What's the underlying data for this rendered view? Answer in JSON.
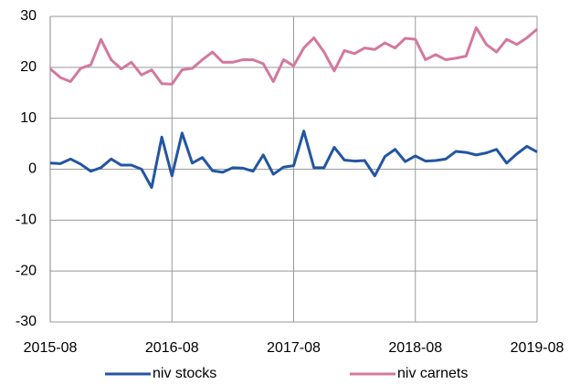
{
  "chart_data": {
    "type": "line",
    "categories": [
      "2015-08",
      null,
      null,
      null,
      null,
      null,
      null,
      null,
      null,
      null,
      null,
      null,
      "2016-08",
      null,
      null,
      null,
      null,
      null,
      null,
      null,
      null,
      null,
      null,
      null,
      "2017-08",
      null,
      null,
      null,
      null,
      null,
      null,
      null,
      null,
      null,
      null,
      null,
      "2018-08",
      null,
      null,
      null,
      null,
      null,
      null,
      null,
      null,
      null,
      null,
      null,
      "2019-08"
    ],
    "series": [
      {
        "name": "niv stocks",
        "color": "#2356a3",
        "values": [
          1.2,
          1.1,
          2,
          1,
          -0.4,
          0.3,
          2,
          0.8,
          0.8,
          0,
          -3.6,
          6.3,
          -1.3,
          7.1,
          1.2,
          2.3,
          -0.3,
          -0.6,
          0.3,
          0.2,
          -0.4,
          2.8,
          -1,
          0.4,
          0.7,
          7.5,
          0.3,
          0.3,
          4.3,
          1.8,
          1.6,
          1.7,
          -1.3,
          2.5,
          3.9,
          1.5,
          2.6,
          1.6,
          1.7,
          2,
          3.5,
          3.3,
          2.8,
          3.2,
          3.9,
          1.2,
          3,
          4.5,
          3.4
        ]
      },
      {
        "name": "niv carnets",
        "color": "#d4789f",
        "values": [
          19.7,
          18,
          17.2,
          19.8,
          20.5,
          25.5,
          21.5,
          19.7,
          21,
          18.5,
          19.5,
          16.8,
          16.7,
          19.5,
          19.8,
          21.5,
          23,
          21,
          21,
          21.5,
          21.5,
          20.7,
          17.2,
          21.5,
          20.3,
          23.8,
          25.8,
          23,
          19.3,
          23.3,
          22.7,
          23.8,
          23.5,
          24.8,
          23.8,
          25.7,
          25.5,
          21.5,
          22.5,
          21.5,
          21.8,
          22.2,
          27.8,
          24.5,
          23,
          25.5,
          24.5,
          25.8,
          27.5
        ]
      }
    ],
    "ylim": [
      -30,
      30
    ],
    "yticks": [
      -30,
      -20,
      -10,
      0,
      10,
      20,
      30
    ],
    "grid": true,
    "legend": "bottom"
  }
}
